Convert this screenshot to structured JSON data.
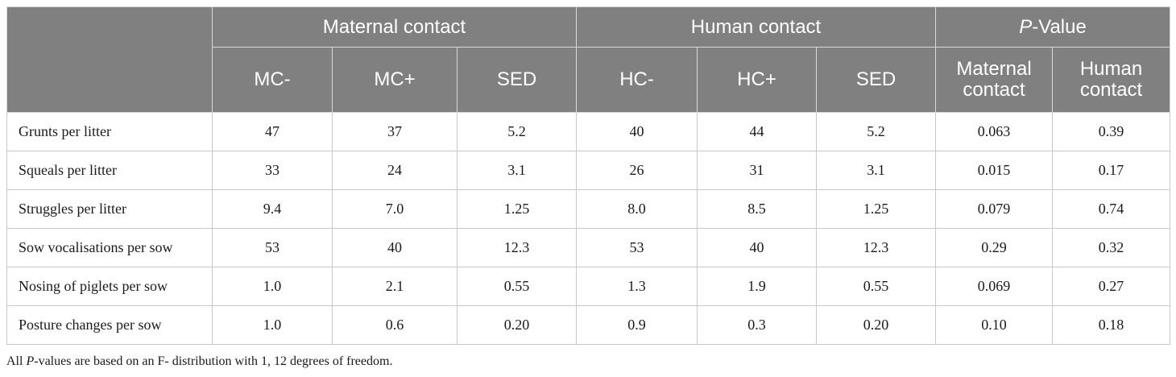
{
  "table": {
    "group_headers": {
      "maternal_contact": "Maternal contact",
      "human_contact": "Human contact",
      "p_value_italic": "P",
      "p_value_rest": "-Value"
    },
    "column_headers": {
      "mc_minus": "MC-",
      "mc_plus": "MC+",
      "sed_mc": "SED",
      "hc_minus": "HC-",
      "hc_plus": "HC+",
      "sed_hc": "SED",
      "p_maternal_line1": "Maternal",
      "p_maternal_line2": "contact",
      "p_human_line1": "Human",
      "p_human_line2": "contact"
    },
    "rows": [
      {
        "label": "Grunts per litter",
        "mc_minus": "47",
        "mc_plus": "37",
        "sed_mc": "5.2",
        "hc_minus": "40",
        "hc_plus": "44",
        "sed_hc": "5.2",
        "p_maternal": "0.063",
        "p_human": "0.39"
      },
      {
        "label": "Squeals per litter",
        "mc_minus": "33",
        "mc_plus": "24",
        "sed_mc": "3.1",
        "hc_minus": "26",
        "hc_plus": "31",
        "sed_hc": "3.1",
        "p_maternal": "0.015",
        "p_human": "0.17"
      },
      {
        "label": "Struggles per litter",
        "mc_minus": "9.4",
        "mc_plus": "7.0",
        "sed_mc": "1.25",
        "hc_minus": "8.0",
        "hc_plus": "8.5",
        "sed_hc": "1.25",
        "p_maternal": "0.079",
        "p_human": "0.74"
      },
      {
        "label": "Sow vocalisations per sow",
        "mc_minus": "53",
        "mc_plus": "40",
        "sed_mc": "12.3",
        "hc_minus": "53",
        "hc_plus": "40",
        "sed_hc": "12.3",
        "p_maternal": "0.29",
        "p_human": "0.32"
      },
      {
        "label": "Nosing of piglets per sow",
        "mc_minus": "1.0",
        "mc_plus": "2.1",
        "sed_mc": "0.55",
        "hc_minus": "1.3",
        "hc_plus": "1.9",
        "sed_hc": "0.55",
        "p_maternal": "0.069",
        "p_human": "0.27"
      },
      {
        "label": "Posture changes per sow",
        "mc_minus": "1.0",
        "mc_plus": "0.6",
        "sed_mc": "0.20",
        "hc_minus": "0.9",
        "hc_plus": "0.3",
        "sed_hc": "0.20",
        "p_maternal": "0.10",
        "p_human": "0.18"
      }
    ]
  },
  "footnote": {
    "all": "All ",
    "p_italic": "P",
    "rest": "-values are based on an F- distribution with 1, 12 degrees of freedom."
  }
}
